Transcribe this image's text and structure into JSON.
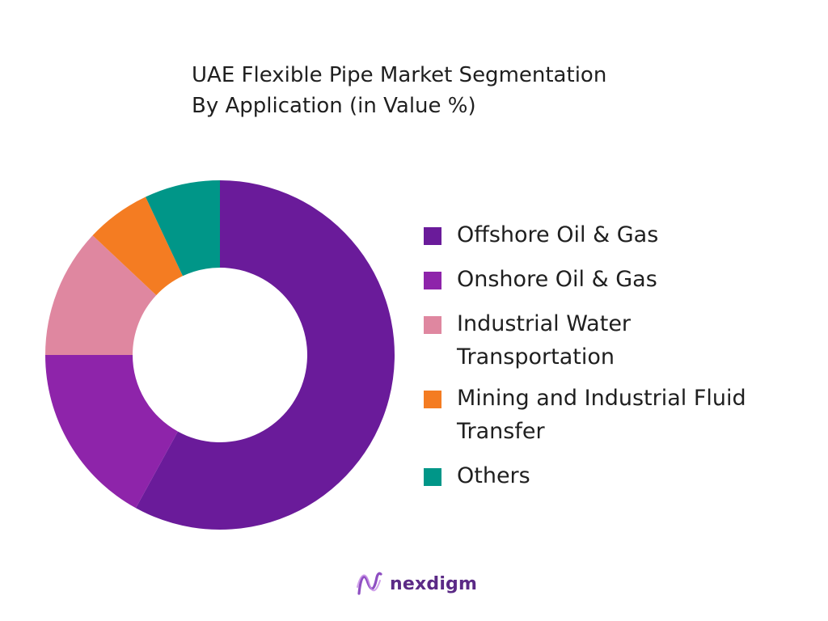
{
  "chart_data": {
    "type": "pie",
    "title": "UAE Flexible Pipe Market Segmentation",
    "subtitle": "By Application (in Value %)",
    "categories": [
      "Offshore Oil & Gas",
      "Onshore Oil & Gas",
      "Industrial Water Transportation",
      "Mining and Industrial Fluid Transfer",
      "Others"
    ],
    "values": [
      58,
      17,
      12,
      6,
      7
    ],
    "colors": [
      "#6a1b9a",
      "#8e24aa",
      "#df87a0",
      "#f47c22",
      "#009688"
    ],
    "legend_position": "right",
    "donut": true
  },
  "legend": [
    {
      "label": "Offshore Oil & Gas",
      "color": "#6a1b9a"
    },
    {
      "label": "Onshore Oil & Gas",
      "color": "#8e24aa"
    },
    {
      "label": "Industrial Water Transportation",
      "color": "#df87a0"
    },
    {
      "label": "Mining and Industrial Fluid Transfer",
      "color": "#f47c22"
    },
    {
      "label": "Others",
      "color": "#009688"
    }
  ],
  "brand": {
    "name": "nexdigm",
    "icon": "nexdigm-logo-icon",
    "color": "#5b2a86"
  }
}
